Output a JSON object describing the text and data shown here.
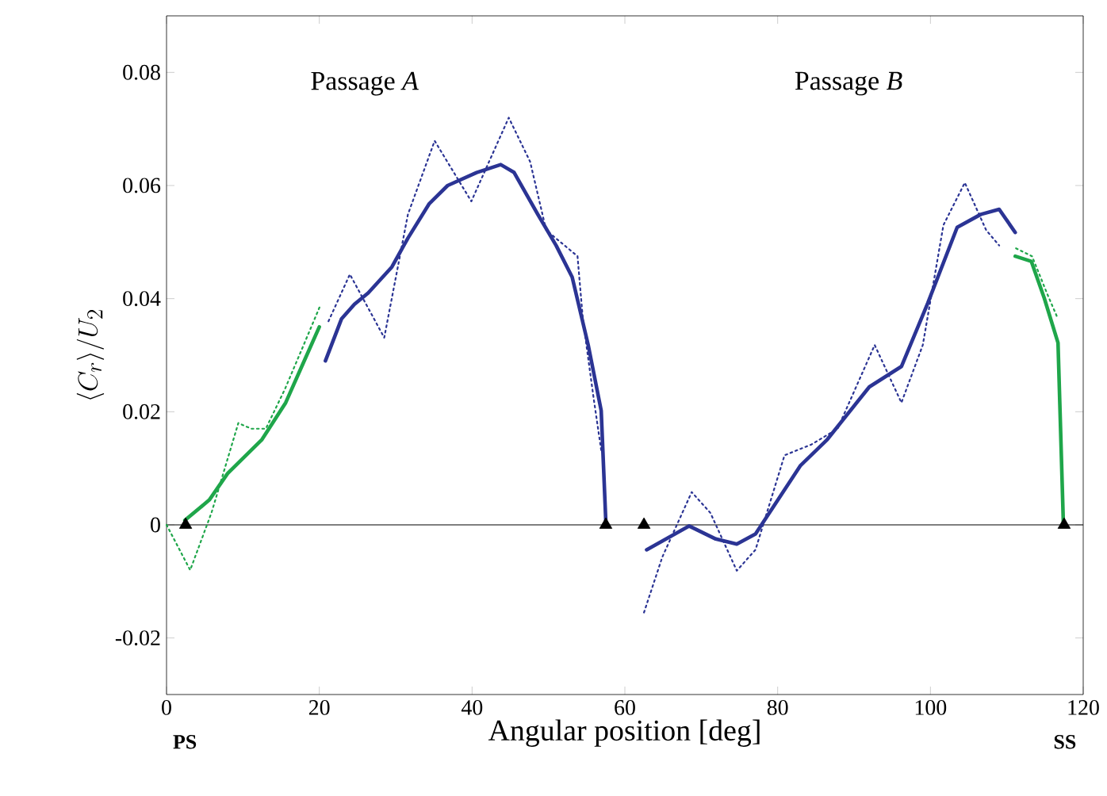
{
  "chart_data": {
    "type": "line",
    "xlabel": "Angular position [deg]",
    "ylabel": "\\langle C_r\\rangle/U_2",
    "xlim": [
      0,
      120
    ],
    "ylim": [
      -0.03,
      0.09
    ],
    "xticks": [
      0,
      20,
      40,
      60,
      80,
      100,
      120
    ],
    "yticks": [
      -0.02,
      0,
      0.02,
      0.04,
      0.06,
      0.08
    ],
    "ref_lines": [
      {
        "axis": "y",
        "value": 0,
        "color": "#000000"
      }
    ],
    "annotations": [
      "Passage *A*",
      "Passage *B*",
      "PS",
      "SS"
    ],
    "series": [
      {
        "color": "#1fa64a",
        "line_style": "dotted",
        "x": [
          0,
          3.1,
          5.9,
          9.4,
          11.1,
          13,
          15.5,
          17.7,
          20.1
        ],
        "values": [
          0,
          -0.008,
          0.0022,
          0.018,
          0.017,
          0.017,
          0.024,
          0.031,
          0.0387
        ]
      },
      {
        "color": "#1fa64a",
        "line_style": "solid",
        "x": [
          2.4,
          5.6,
          8.0,
          12.5,
          15.6,
          17.7,
          20.0
        ],
        "values": [
          0.0008,
          0.0044,
          0.0091,
          0.0151,
          0.0216,
          0.028,
          0.035
        ]
      },
      {
        "color": "#2b3494",
        "line_style": "dotted",
        "x": [
          21.2,
          24.0,
          28.5,
          31.6,
          35.1,
          39.9,
          44.8,
          47.6,
          49.7,
          53.8,
          54.5,
          55.9,
          56.9
        ],
        "values": [
          0.036,
          0.0443,
          0.0331,
          0.0549,
          0.0679,
          0.0572,
          0.072,
          0.0642,
          0.0521,
          0.0475,
          0.0364,
          0.0225,
          0.0132
        ]
      },
      {
        "color": "#2b3494",
        "line_style": "solid",
        "x": [
          20.8,
          22.9,
          24.6,
          26.4,
          29.5,
          31.6,
          34.4,
          36.8,
          40.6,
          43.75,
          45.5,
          48.6,
          51.0,
          53.1,
          55.2,
          56.9,
          57.5
        ],
        "values": [
          0.029,
          0.0364,
          0.039,
          0.041,
          0.0456,
          0.0507,
          0.0568,
          0.06,
          0.0623,
          0.0637,
          0.0623,
          0.0549,
          0.0494,
          0.0438,
          0.0318,
          0.0202,
          0.0008
        ]
      },
      {
        "color": "#2b3494",
        "line_style": "dotted",
        "x": [
          62.5,
          64.9,
          68.75,
          71.2,
          74.65,
          77.1,
          80.9,
          84.4,
          87.85,
          92.7,
          96.2,
          99.0,
          101.7,
          104.5,
          107.3,
          109.0
        ],
        "values": [
          -0.0155,
          -0.0057,
          0.0058,
          0.0021,
          -0.0081,
          -0.0044,
          0.0123,
          0.0142,
          0.017,
          0.0318,
          0.0216,
          0.0318,
          0.053,
          0.0605,
          0.0521,
          0.0494
        ]
      },
      {
        "color": "#2b3494",
        "line_style": "solid",
        "x": [
          62.85,
          68.4,
          71.9,
          74.65,
          77.1,
          83.0,
          86.5,
          92.0,
          96.2,
          99.65,
          103.5,
          106.6,
          109.0,
          111.1
        ],
        "values": [
          -0.0044,
          -0.0002,
          -0.0025,
          -0.0034,
          -0.0016,
          0.0105,
          0.0151,
          0.0244,
          0.028,
          0.0392,
          0.0526,
          0.0549,
          0.0558,
          0.0517
        ]
      },
      {
        "color": "#1fa64a",
        "line_style": "dotted",
        "x": [
          111.2,
          113.3,
          115.3,
          116.7
        ],
        "values": [
          0.0489,
          0.0475,
          0.0408,
          0.0364
        ]
      },
      {
        "color": "#1fa64a",
        "line_style": "solid",
        "x": [
          111.1,
          113.2,
          114.9,
          116.7,
          117.4
        ],
        "values": [
          0.0475,
          0.0466,
          0.0401,
          0.0322,
          0.0003
        ]
      },
      {
        "type": "scatter",
        "color": "#000000",
        "marker": "triangle",
        "x": [
          2.5,
          57.5,
          62.5,
          117.5
        ],
        "values": [
          0,
          0,
          0,
          0
        ]
      }
    ]
  }
}
